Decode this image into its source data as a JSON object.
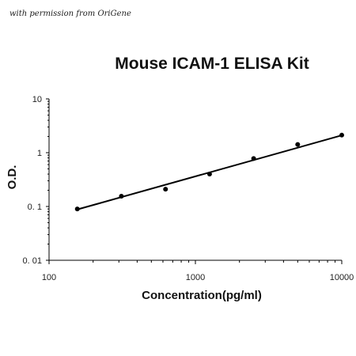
{
  "watermark": "with permission from OriGene",
  "chart_data": {
    "type": "scatter",
    "title": "Mouse ICAM-1 ELISA Kit",
    "xlabel": "Concentration(pg/ml)",
    "ylabel": "O.D.",
    "x_scale": "log",
    "y_scale": "log",
    "xlim": [
      100,
      10000
    ],
    "ylim": [
      0.01,
      10
    ],
    "x_ticks": [
      {
        "value": 100,
        "label": "100"
      },
      {
        "value": 1000,
        "label": "1000"
      },
      {
        "value": 10000,
        "label": "10000"
      }
    ],
    "y_ticks": [
      {
        "value": 0.01,
        "label": "0. 01"
      },
      {
        "value": 0.1,
        "label": "0. 1"
      },
      {
        "value": 1,
        "label": "1"
      },
      {
        "value": 10,
        "label": "10"
      }
    ],
    "series": [
      {
        "points": [
          {
            "x": 156,
            "y": 0.09
          },
          {
            "x": 312,
            "y": 0.155
          },
          {
            "x": 625,
            "y": 0.21
          },
          {
            "x": 1250,
            "y": 0.4
          },
          {
            "x": 2500,
            "y": 0.78
          },
          {
            "x": 5000,
            "y": 1.42
          },
          {
            "x": 10000,
            "y": 2.12
          }
        ]
      }
    ],
    "fit_line": [
      {
        "x": 156,
        "y": 0.088
      },
      {
        "x": 10000,
        "y": 2.1
      }
    ],
    "grid": false,
    "legend": "none"
  }
}
